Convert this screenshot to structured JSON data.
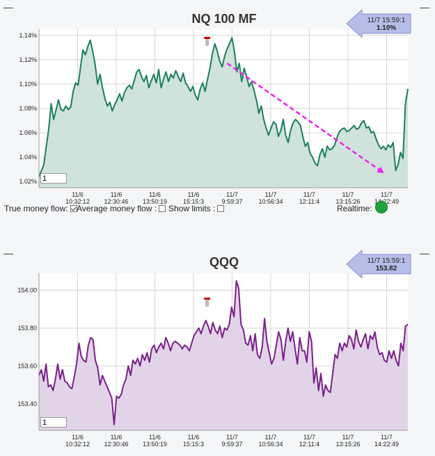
{
  "chart_data": [
    {
      "type": "area",
      "title": "NQ 100 MF",
      "ylim": [
        1.015,
        1.145
      ],
      "yticks": [
        1.02,
        1.04,
        1.06,
        1.08,
        1.1,
        1.12,
        1.14
      ],
      "ytick_labels": [
        "1.02%",
        "1.04%",
        "1.06%",
        "1.08%",
        "1.10%",
        "1.12%",
        "1.14%"
      ],
      "x_labels": [
        [
          "11/6",
          "10:32:12"
        ],
        [
          "11/6",
          "12:30:46"
        ],
        [
          "11/6",
          "13:50:19"
        ],
        [
          "11/6",
          "15:15:3"
        ],
        [
          "11/7",
          "9:59:37"
        ],
        [
          "11/7",
          "10:56:34"
        ],
        [
          "11/7",
          "12:11:4"
        ],
        [
          "11/7",
          "13:15:26"
        ],
        [
          "11/7",
          "14:22:49"
        ]
      ],
      "line_color": "#1a7f5a",
      "fill_color": "#cfe3dc",
      "grid": true,
      "callout": {
        "time": "11/7 15:59:1",
        "value": "1.10%"
      },
      "trend_line": {
        "color": "#ee22ee",
        "from": [
          0.51,
          1.117
        ],
        "to": [
          0.935,
          1.027
        ]
      },
      "marker": {
        "x": 0.455,
        "y": 1.137
      },
      "values": [
        1.024,
        1.029,
        1.034,
        1.049,
        1.063,
        1.084,
        1.071,
        1.079,
        1.087,
        1.079,
        1.078,
        1.082,
        1.079,
        1.081,
        1.094,
        1.101,
        1.099,
        1.114,
        1.128,
        1.124,
        1.131,
        1.136,
        1.127,
        1.116,
        1.1,
        1.108,
        1.097,
        1.088,
        1.082,
        1.085,
        1.078,
        1.083,
        1.087,
        1.092,
        1.086,
        1.093,
        1.097,
        1.099,
        1.096,
        1.103,
        1.11,
        1.112,
        1.106,
        1.102,
        1.107,
        1.097,
        1.103,
        1.108,
        1.101,
        1.112,
        1.097,
        1.104,
        1.11,
        1.102,
        1.108,
        1.105,
        1.111,
        1.106,
        1.102,
        1.109,
        1.101,
        1.098,
        1.094,
        1.098,
        1.091,
        1.087,
        1.096,
        1.101,
        1.094,
        1.104,
        1.113,
        1.125,
        1.133,
        1.127,
        1.119,
        1.114,
        1.123,
        1.129,
        1.133,
        1.138,
        1.127,
        1.11,
        1.117,
        1.102,
        1.113,
        1.106,
        1.098,
        1.102,
        1.095,
        1.087,
        1.076,
        1.082,
        1.071,
        1.064,
        1.058,
        1.064,
        1.069,
        1.067,
        1.057,
        1.062,
        1.071,
        1.058,
        1.052,
        1.062,
        1.068,
        1.071,
        1.069,
        1.066,
        1.057,
        1.049,
        1.052,
        1.043,
        1.04,
        1.035,
        1.033,
        1.042,
        1.047,
        1.04,
        1.049,
        1.046,
        1.047,
        1.05,
        1.056,
        1.061,
        1.063,
        1.064,
        1.061,
        1.062,
        1.064,
        1.066,
        1.063,
        1.064,
        1.068,
        1.07,
        1.064,
        1.065,
        1.06,
        1.061,
        1.055,
        1.05,
        1.047,
        1.049,
        1.046,
        1.05,
        1.048,
        1.052,
        1.029,
        1.034,
        1.044,
        1.039,
        1.084,
        1.096
      ],
      "periods": "1"
    },
    {
      "type": "area",
      "title": "QQQ",
      "ylim": [
        153.26,
        154.09
      ],
      "yticks": [
        153.4,
        153.6,
        153.8,
        154.0
      ],
      "ytick_labels": [
        "153.40",
        "153.60",
        "153.80",
        "154.00"
      ],
      "x_labels": [
        [
          "11/6",
          "10:32:12"
        ],
        [
          "11/6",
          "12:30:46"
        ],
        [
          "11/6",
          "13:50:19"
        ],
        [
          "11/6",
          "15:15:3"
        ],
        [
          "11/7",
          "9:59:37"
        ],
        [
          "11/7",
          "10:56:34"
        ],
        [
          "11/7",
          "12:11:4"
        ],
        [
          "11/7",
          "13:15:26"
        ],
        [
          "11/7",
          "14:22:49"
        ]
      ],
      "line_color": "#7a1f8a",
      "fill_color": "#e2d4e8",
      "grid": true,
      "callout": {
        "time": "11/7 15:59:1",
        "value": "153.82"
      },
      "marker": {
        "x": 0.455,
        "y": 153.95
      },
      "values": [
        153.55,
        153.58,
        153.52,
        153.61,
        153.49,
        153.5,
        153.47,
        153.53,
        153.61,
        153.53,
        153.58,
        153.52,
        153.51,
        153.49,
        153.48,
        153.54,
        153.61,
        153.72,
        153.65,
        153.63,
        153.62,
        153.71,
        153.75,
        153.74,
        153.63,
        153.59,
        153.5,
        153.55,
        153.52,
        153.49,
        153.46,
        153.43,
        153.29,
        153.44,
        153.43,
        153.45,
        153.5,
        153.53,
        153.6,
        153.55,
        153.63,
        153.61,
        153.64,
        153.6,
        153.66,
        153.63,
        153.67,
        153.62,
        153.69,
        153.71,
        153.67,
        153.7,
        153.72,
        153.69,
        153.75,
        153.72,
        153.68,
        153.72,
        153.73,
        153.72,
        153.71,
        153.69,
        153.71,
        153.7,
        153.68,
        153.72,
        153.76,
        153.78,
        153.8,
        153.77,
        153.81,
        153.84,
        153.81,
        153.77,
        153.83,
        153.79,
        153.77,
        153.81,
        153.75,
        153.8,
        153.79,
        153.82,
        153.91,
        153.86,
        154.05,
        154.01,
        153.82,
        153.79,
        153.72,
        153.71,
        153.76,
        153.68,
        153.77,
        153.66,
        153.64,
        153.7,
        153.85,
        153.73,
        153.67,
        153.61,
        153.64,
        153.71,
        153.78,
        153.74,
        153.63,
        153.73,
        153.8,
        153.73,
        153.78,
        153.69,
        153.61,
        153.75,
        153.68,
        153.68,
        153.62,
        153.78,
        153.73,
        153.51,
        153.59,
        153.47,
        153.56,
        153.44,
        153.5,
        153.47,
        153.46,
        153.56,
        153.66,
        153.64,
        153.72,
        153.68,
        153.72,
        153.7,
        153.76,
        153.74,
        153.69,
        153.79,
        153.73,
        153.7,
        153.74,
        153.77,
        153.69,
        153.76,
        153.74,
        153.78,
        153.7,
        153.66,
        153.67,
        153.63,
        153.62,
        153.68,
        153.64,
        153.68,
        153.63,
        153.6,
        153.72,
        153.68,
        153.81,
        153.82
      ],
      "periods": "1"
    }
  ],
  "controls": {
    "true_money_flow": {
      "label": "True money flow:",
      "checked": true
    },
    "average_money_flow": {
      "label": "Average money flow :",
      "checked": false
    },
    "show_limits": {
      "label": "Show limits :",
      "checked": false
    },
    "realtime": {
      "label": "Realtime:",
      "status_color": "#1fa33a"
    }
  },
  "dash_glyph": "—"
}
